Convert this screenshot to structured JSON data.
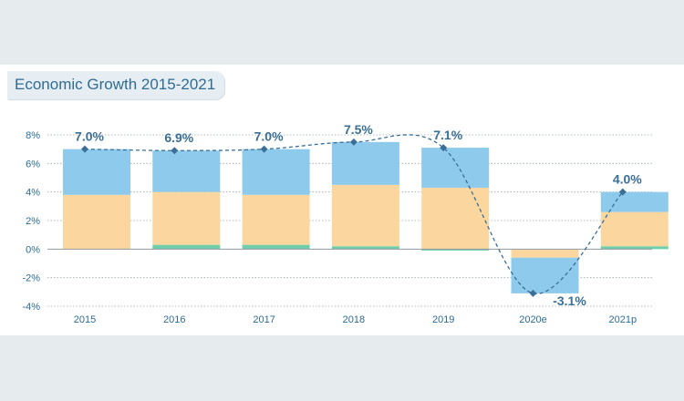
{
  "chart_data": {
    "type": "bar",
    "title": "Economic Growth 2015-2021",
    "categories": [
      "2015",
      "2016",
      "2017",
      "2018",
      "2019",
      "2020e",
      "2021p"
    ],
    "series": [
      {
        "color": "#6fcfa8",
        "values": [
          0.0,
          0.3,
          0.3,
          0.2,
          -0.1,
          0.0,
          0.2
        ]
      },
      {
        "color": "#fbd79f",
        "values": [
          3.8,
          3.7,
          3.5,
          4.3,
          4.3,
          -0.6,
          2.4
        ]
      },
      {
        "color": "#8ecaeb",
        "values": [
          3.2,
          2.9,
          3.2,
          3.0,
          2.8,
          -2.5,
          1.4
        ]
      }
    ],
    "total_line": {
      "values": [
        7.0,
        6.9,
        7.0,
        7.5,
        7.1,
        -3.1,
        4.0
      ],
      "labels": [
        "7.0%",
        "6.9%",
        "7.0%",
        "7.5%",
        "7.1%",
        "-3.1%",
        "4.0%"
      ],
      "color": "#3b6f96"
    },
    "yticks": [
      8,
      6,
      4,
      2,
      0,
      -2,
      -4
    ],
    "ytick_labels": [
      "8%",
      "6%",
      "4%",
      "2%",
      "0%",
      "-2%",
      "-4%"
    ],
    "ylim": [
      -4,
      8
    ],
    "grid": true,
    "xlabel": "",
    "ylabel": ""
  }
}
